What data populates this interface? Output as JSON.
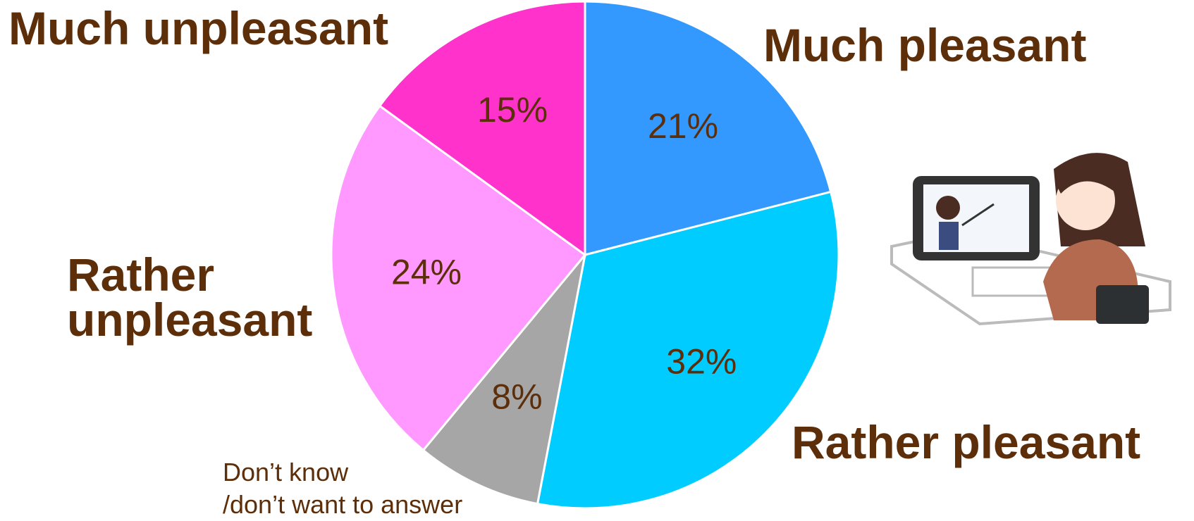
{
  "chart_data": {
    "type": "pie",
    "categories": [
      "Much pleasant",
      "Rather pleasant",
      "Don’t know\n/don’t want to answer",
      "Rather\nunpleasant",
      "Much unpleasant"
    ],
    "values": [
      21,
      32,
      8,
      24,
      15
    ],
    "value_labels": [
      "21%",
      "32%",
      "8%",
      "24%",
      "15%"
    ],
    "colors": [
      "#3399ff",
      "#00ccff",
      "#a6a6a6",
      "#ff99ff",
      "#ff33cc"
    ]
  }
}
